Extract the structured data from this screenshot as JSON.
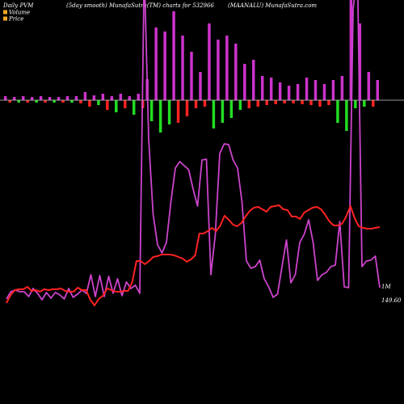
{
  "header": {
    "left": "Daily PVM",
    "smooth": "(5day smooth) MunafaSutra(TM) charts for 532966",
    "right": "(MAANALU) MunafaSutra.com"
  },
  "legend": {
    "volume": "Volume",
    "price": "Price",
    "volume_color": "#f5a623",
    "price_color": "#f5a623"
  },
  "chart_data": {
    "type": "line",
    "title": "",
    "grid": false,
    "colors": {
      "volume_line": "#cc44cc",
      "price_line": "#ff2222",
      "bar_up": "#cc33cc",
      "bar_down_red": "#ff2222",
      "bar_down_green": "#22dd22",
      "zero_line": "#cccccc"
    },
    "series": [
      {
        "key": "volume_line",
        "label": "1M",
        "values": [
          370,
          361,
          359,
          361,
          361,
          367,
          357,
          363,
          371,
          362,
          369,
          362,
          365,
          370,
          357,
          368,
          364,
          359,
          363,
          340,
          367,
          341,
          367,
          342,
          363,
          345,
          366,
          349,
          357,
          353,
          363,
          -40,
          172,
          265,
          303,
          313,
          300,
          250,
          208,
          200,
          205,
          210,
          234,
          255,
          198,
          197,
          340,
          290,
          190,
          178,
          179,
          198,
          208,
          250,
          323,
          332,
          330,
          322,
          345,
          355,
          368,
          364,
          330,
          297,
          350,
          340,
          300,
          290,
          272,
          300,
          347,
          340,
          337,
          330,
          328,
          274,
          355,
          356,
          10,
          -30,
          330,
          323,
          322,
          317,
          356
        ]
      },
      {
        "key": "price_line",
        "label": "149.60",
        "values": [
          375,
          365,
          359,
          358,
          358,
          355,
          360,
          359,
          361,
          358,
          359,
          358,
          358,
          357,
          360,
          361,
          361,
          356,
          359,
          359,
          371,
          378,
          370,
          366,
          357,
          359,
          361,
          361,
          360,
          360,
          349,
          323,
          323,
          327,
          323,
          318,
          317,
          315,
          315,
          315,
          316,
          318,
          320,
          324,
          321,
          316,
          289,
          289,
          286,
          282,
          286,
          279,
          267,
          272,
          278,
          280,
          276,
          268,
          261,
          257,
          256,
          259,
          262,
          256,
          255,
          254,
          259,
          260,
          268,
          268,
          271,
          263,
          260,
          257,
          256,
          259,
          266,
          274,
          279,
          279,
          277,
          268,
          255,
          270,
          280,
          282,
          283,
          283,
          282,
          281
        ]
      }
    ],
    "bars": [
      {
        "v": 5,
        "c": "up"
      },
      {
        "v": -3,
        "c": "red"
      },
      {
        "v": 4,
        "c": "up"
      },
      {
        "v": -3,
        "c": "green"
      },
      {
        "v": 5,
        "c": "up"
      },
      {
        "v": -3,
        "c": "red"
      },
      {
        "v": 4,
        "c": "up"
      },
      {
        "v": -3,
        "c": "green"
      },
      {
        "v": 5,
        "c": "up"
      },
      {
        "v": -3,
        "c": "red"
      },
      {
        "v": 4,
        "c": "up"
      },
      {
        "v": -3,
        "c": "green"
      },
      {
        "v": 4,
        "c": "up"
      },
      {
        "v": -3,
        "c": "red"
      },
      {
        "v": 5,
        "c": "up"
      },
      {
        "v": -3,
        "c": "green"
      },
      {
        "v": 5,
        "c": "up"
      },
      {
        "v": -4,
        "c": "red"
      },
      {
        "v": 10,
        "c": "up"
      },
      {
        "v": -8,
        "c": "red"
      },
      {
        "v": 6,
        "c": "up"
      },
      {
        "v": -6,
        "c": "green"
      },
      {
        "v": 8,
        "c": "up"
      },
      {
        "v": -12,
        "c": "red"
      },
      {
        "v": 5,
        "c": "up"
      },
      {
        "v": -15,
        "c": "green"
      },
      {
        "v": 8,
        "c": "up"
      },
      {
        "v": -10,
        "c": "red"
      },
      {
        "v": 5,
        "c": "up"
      },
      {
        "v": -18,
        "c": "green"
      },
      {
        "v": 8,
        "c": "up"
      },
      {
        "v": -10,
        "c": "red"
      },
      {
        "v": 26,
        "c": "up"
      },
      {
        "v": -26,
        "c": "green"
      },
      {
        "v": 90,
        "c": "up"
      },
      {
        "v": -40,
        "c": "green"
      },
      {
        "v": 85,
        "c": "up"
      },
      {
        "v": -30,
        "c": "green"
      },
      {
        "v": 110,
        "c": "up"
      },
      {
        "v": -28,
        "c": "red"
      },
      {
        "v": 80,
        "c": "up"
      },
      {
        "v": -20,
        "c": "red"
      },
      {
        "v": 60,
        "c": "up"
      },
      {
        "v": -10,
        "c": "red"
      },
      {
        "v": 35,
        "c": "up"
      },
      {
        "v": -8,
        "c": "red"
      },
      {
        "v": 95,
        "c": "up"
      },
      {
        "v": -35,
        "c": "green"
      },
      {
        "v": 75,
        "c": "up"
      },
      {
        "v": -28,
        "c": "green"
      },
      {
        "v": 80,
        "c": "up"
      },
      {
        "v": -22,
        "c": "green"
      },
      {
        "v": 70,
        "c": "up"
      },
      {
        "v": -12,
        "c": "green"
      },
      {
        "v": 45,
        "c": "up"
      },
      {
        "v": -10,
        "c": "red"
      },
      {
        "v": 50,
        "c": "up"
      },
      {
        "v": -8,
        "c": "red"
      },
      {
        "v": 30,
        "c": "up"
      },
      {
        "v": -6,
        "c": "red"
      },
      {
        "v": 28,
        "c": "up"
      },
      {
        "v": -5,
        "c": "red"
      },
      {
        "v": 22,
        "c": "up"
      },
      {
        "v": -4,
        "c": "red"
      },
      {
        "v": 18,
        "c": "up"
      },
      {
        "v": -4,
        "c": "red"
      },
      {
        "v": 20,
        "c": "up"
      },
      {
        "v": -5,
        "c": "red"
      },
      {
        "v": 28,
        "c": "up"
      },
      {
        "v": -6,
        "c": "red"
      },
      {
        "v": 25,
        "c": "up"
      },
      {
        "v": -8,
        "c": "red"
      },
      {
        "v": 20,
        "c": "up"
      },
      {
        "v": -6,
        "c": "red"
      },
      {
        "v": 25,
        "c": "up"
      },
      {
        "v": -28,
        "c": "green"
      },
      {
        "v": 30,
        "c": "up"
      },
      {
        "v": -38,
        "c": "green"
      },
      {
        "v": 125,
        "c": "up"
      },
      {
        "v": -10,
        "c": "green"
      },
      {
        "v": 95,
        "c": "up"
      },
      {
        "v": -8,
        "c": "green"
      },
      {
        "v": 35,
        "c": "up"
      },
      {
        "v": -8,
        "c": "red"
      },
      {
        "v": 25,
        "c": "up"
      }
    ]
  }
}
